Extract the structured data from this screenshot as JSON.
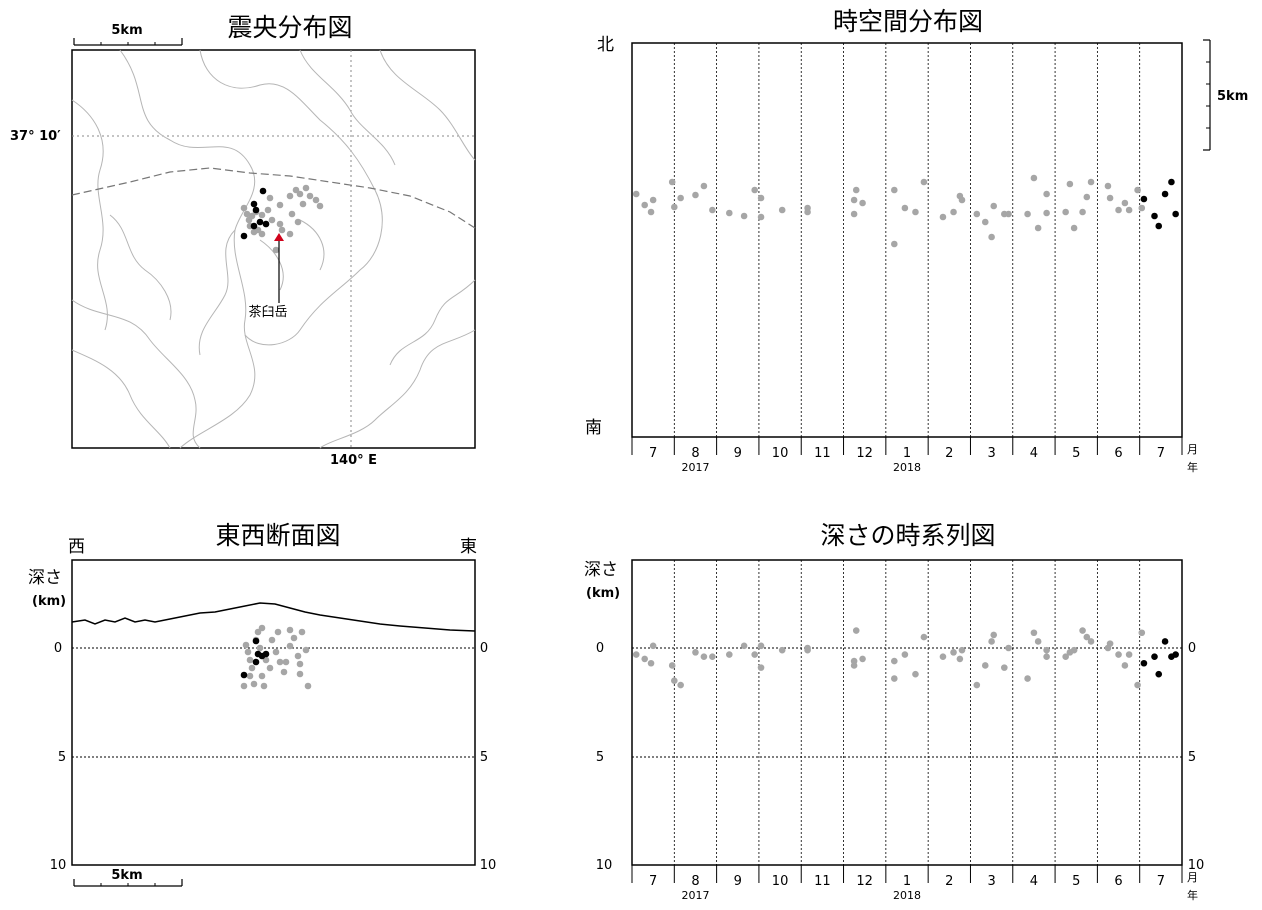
{
  "panels": {
    "epicenter": {
      "title": "震央分布図",
      "lat_label": "37° 10′",
      "lon_label": "140° E",
      "scale_label": "5km",
      "volcano_label": "茶臼岳"
    },
    "timespace": {
      "title": "時空間分布図",
      "north_label": "北",
      "south_label": "南",
      "scale_label": "5km"
    },
    "ew_section": {
      "title": "東西断面図",
      "west_label": "西",
      "east_label": "東",
      "depth_label": "深さ",
      "depth_unit": "(km)",
      "scale_label": "5km"
    },
    "depth_series": {
      "title": "深さの時系列図",
      "depth_label": "深さ",
      "depth_unit": "(km)"
    }
  },
  "time_axis": {
    "months": [
      "7",
      "8",
      "9",
      "10",
      "11",
      "12",
      "1",
      "2",
      "3",
      "4",
      "5",
      "6",
      "7"
    ],
    "years": [
      "2017",
      "2018"
    ],
    "month_unit": "月",
    "year_unit": "年"
  },
  "colors": {
    "past_event": "#a6a6a6",
    "recent_event": "#000000",
    "volcano_marker": "#d0021b"
  },
  "chart_data": [
    {
      "type": "scatter",
      "title": "震央分布図",
      "xlabel": "",
      "ylabel": "",
      "marker": "茶臼岳",
      "series": []
    },
    {
      "type": "scatter",
      "title": "時空間分布図",
      "xlabel": "",
      "ylabel": "",
      "series": [],
      "note": ""
    },
    {
      "type": "scatter",
      "title": "東西断面図",
      "ylabel": "深さ (km)",
      "yticks": [
        "0",
        "5",
        "10"
      ],
      "ylim": [
        10,
        -2
      ],
      "series": []
    },
    {
      "type": "scatter",
      "title": "深さの時系列図",
      "ylabel": "深さ (km)",
      "yticks": [
        "0",
        "5",
        "10"
      ],
      "ylim": [
        10,
        -2
      ],
      "x_months": [
        "7",
        "8",
        "9",
        "10",
        "11",
        "12",
        "1",
        "2",
        "3",
        "4",
        "5",
        "6",
        "7"
      ],
      "x_years": [
        "2017",
        "2018"
      ],
      "series": [
        {
          "values_past": [
            [
              0.1,
              0.3
            ],
            [
              0.3,
              0.5
            ],
            [
              0.45,
              0.7
            ],
            [
              0.5,
              -0.1
            ],
            [
              0.95,
              0.8
            ],
            [
              1.0,
              1.5
            ],
            [
              1.15,
              1.7
            ],
            [
              1.5,
              0.2
            ],
            [
              1.7,
              0.4
            ],
            [
              1.9,
              0.4
            ],
            [
              2.3,
              0.3
            ],
            [
              2.65,
              -0.1
            ],
            [
              2.9,
              0.3
            ],
            [
              3.05,
              0.9
            ],
            [
              3.05,
              -0.1
            ],
            [
              3.55,
              0.1
            ],
            [
              4.15,
              0.0
            ],
            [
              4.15,
              0.1
            ],
            [
              5.25,
              0.6
            ],
            [
              5.25,
              0.8
            ],
            [
              5.3,
              -0.8
            ],
            [
              5.45,
              0.5
            ],
            [
              6.2,
              0.6
            ],
            [
              6.2,
              1.4
            ],
            [
              6.45,
              0.3
            ],
            [
              6.7,
              1.2
            ],
            [
              6.9,
              -0.5
            ],
            [
              7.35,
              0.4
            ],
            [
              7.6,
              0.2
            ],
            [
              7.75,
              0.5
            ],
            [
              7.8,
              0.1
            ],
            [
              8.15,
              1.7
            ],
            [
              8.35,
              0.8
            ],
            [
              8.5,
              -0.3
            ],
            [
              8.55,
              -0.6
            ],
            [
              8.8,
              0.9
            ],
            [
              8.9,
              0.0
            ],
            [
              9.35,
              1.4
            ],
            [
              9.5,
              -0.7
            ],
            [
              9.6,
              -0.3
            ],
            [
              9.8,
              0.4
            ],
            [
              9.8,
              0.1
            ],
            [
              10.25,
              0.4
            ],
            [
              10.35,
              0.2
            ],
            [
              10.45,
              0.1
            ],
            [
              10.65,
              -0.8
            ],
            [
              10.75,
              -0.5
            ],
            [
              10.85,
              -0.3
            ],
            [
              11.25,
              0.0
            ],
            [
              11.3,
              -0.2
            ],
            [
              11.5,
              0.3
            ],
            [
              11.65,
              0.8
            ],
            [
              11.75,
              0.3
            ],
            [
              11.95,
              1.7
            ],
            [
              12.05,
              -0.7
            ]
          ],
          "values_recent": [
            [
              12.1,
              0.7
            ],
            [
              12.35,
              0.4
            ],
            [
              12.45,
              1.2
            ],
            [
              12.6,
              -0.3
            ],
            [
              12.75,
              0.4
            ],
            [
              12.85,
              0.3
            ]
          ]
        }
      ]
    }
  ]
}
